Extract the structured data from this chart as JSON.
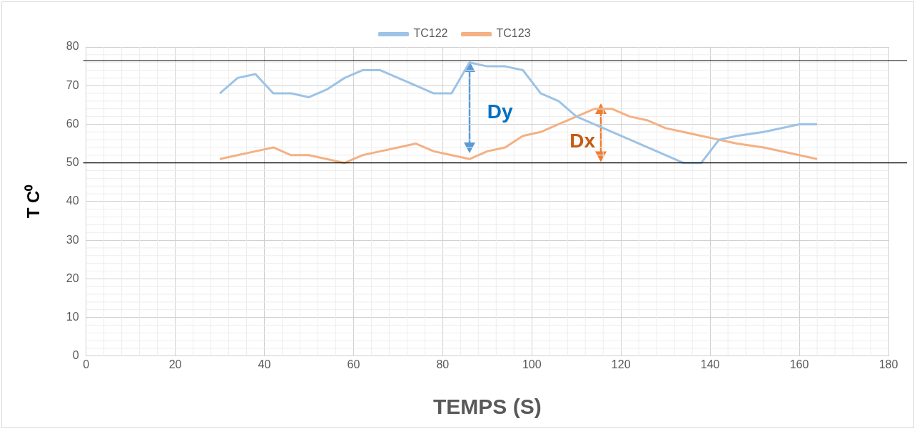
{
  "chart_data": {
    "type": "line",
    "xlabel": "TEMPS (S)",
    "ylabel": "T C⁰",
    "xlim": [
      0,
      180
    ],
    "xticks": [
      0,
      20,
      40,
      60,
      80,
      100,
      120,
      140,
      160,
      180
    ],
    "ylim": [
      0,
      80
    ],
    "yticks": [
      0,
      10,
      20,
      30,
      40,
      50,
      60,
      70,
      80
    ],
    "grid": true,
    "legend": "top",
    "marker": "none",
    "line_style": "solid",
    "series": [
      {
        "name": "TC122",
        "color": "#9dc3e6",
        "x": [
          30,
          34,
          38,
          42,
          46,
          50,
          54,
          58,
          62,
          66,
          70,
          74,
          78,
          82,
          86,
          90,
          94,
          98,
          102,
          106,
          110,
          114,
          120,
          126,
          134,
          138,
          142,
          146,
          152,
          160,
          164
        ],
        "values": [
          68,
          72,
          73,
          68,
          68,
          67,
          69,
          72,
          74,
          74,
          72,
          70,
          68,
          68,
          76,
          75,
          75,
          74,
          68,
          66,
          62,
          60,
          57,
          54,
          50,
          50,
          56,
          57,
          58,
          60,
          60
        ]
      },
      {
        "name": "TC123",
        "color": "#f4b183",
        "x": [
          30,
          34,
          38,
          42,
          46,
          50,
          54,
          58,
          62,
          66,
          70,
          74,
          78,
          82,
          86,
          90,
          94,
          98,
          102,
          106,
          110,
          114,
          118,
          122,
          126,
          130,
          134,
          138,
          142,
          146,
          152,
          160,
          164
        ],
        "values": [
          51,
          52,
          53,
          54,
          52,
          52,
          51,
          50,
          52,
          53,
          54,
          55,
          53,
          52,
          51,
          53,
          54,
          57,
          58,
          60,
          62,
          64,
          64,
          62,
          61,
          59,
          58,
          57,
          56,
          55,
          54,
          52,
          51
        ]
      }
    ],
    "ref_lines": [
      {
        "axis": "y",
        "value": 76.5,
        "color": "#000000"
      },
      {
        "axis": "y",
        "value": 50,
        "color": "#000000"
      }
    ],
    "annotations": [
      "Dy",
      "Dx"
    ]
  }
}
